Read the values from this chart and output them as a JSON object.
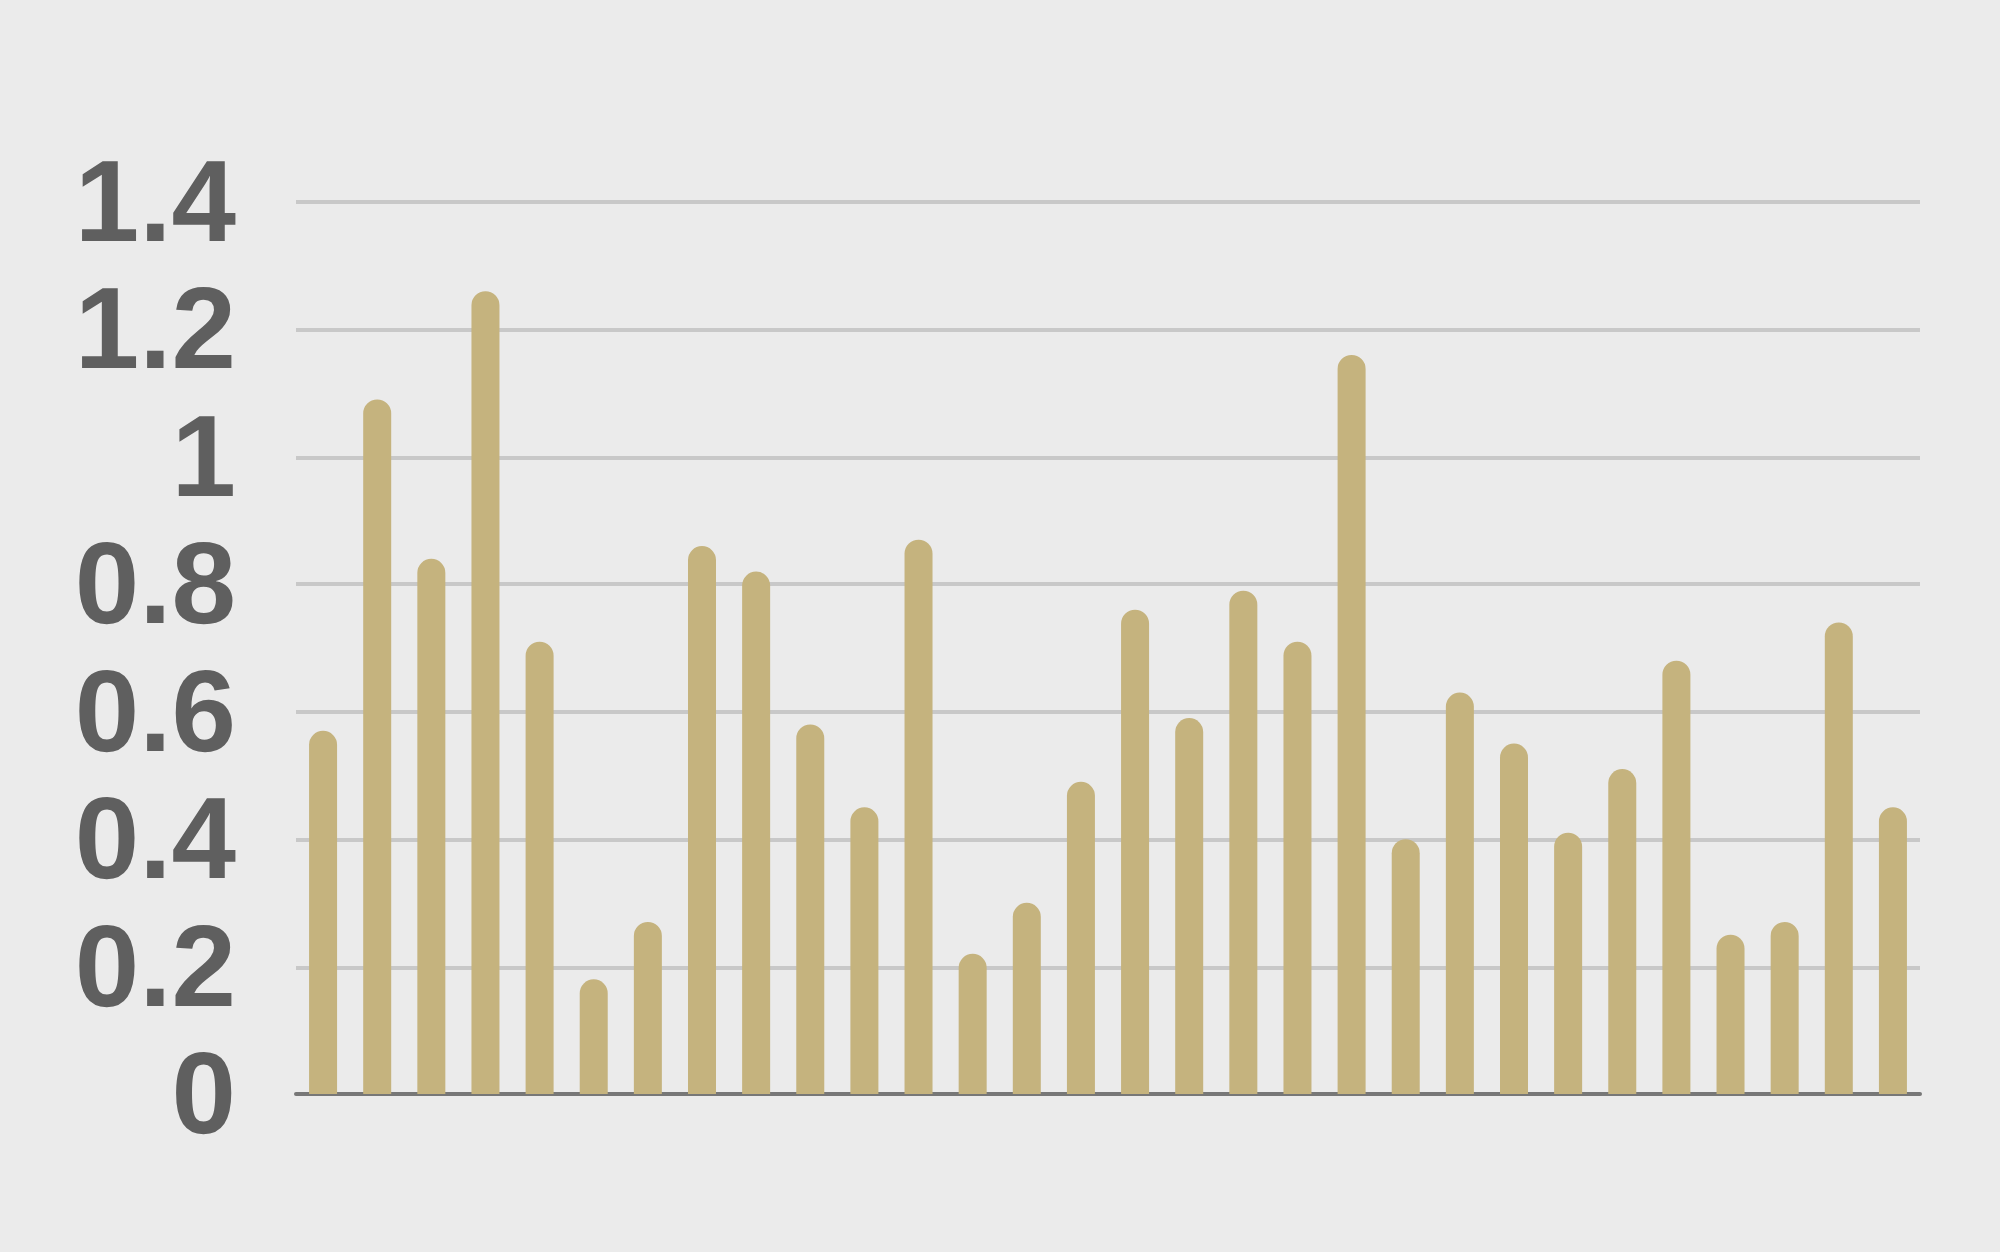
{
  "chart_data": {
    "type": "bar",
    "categories": [
      null,
      null,
      null,
      null,
      null,
      null,
      null,
      null,
      null,
      null,
      null,
      null,
      null,
      null,
      null,
      null,
      null,
      null,
      null,
      null,
      null,
      null,
      null,
      null,
      null,
      null,
      null,
      null,
      null,
      null
    ],
    "values": [
      0.57,
      1.09,
      0.84,
      1.26,
      0.71,
      0.18,
      0.27,
      0.86,
      0.82,
      0.58,
      0.45,
      0.87,
      0.22,
      0.3,
      0.49,
      0.76,
      0.59,
      0.79,
      0.71,
      1.16,
      0.4,
      0.63,
      0.55,
      0.41,
      0.51,
      0.68,
      0.25,
      0.27,
      0.74,
      0.45
    ],
    "color": "#c5b37e",
    "ylim": [
      0,
      1.4
    ],
    "yticks": [
      0,
      0.2,
      0.4,
      0.6,
      0.8,
      1,
      1.2,
      1.4
    ],
    "grid": "y",
    "tick_labels": "y"
  }
}
